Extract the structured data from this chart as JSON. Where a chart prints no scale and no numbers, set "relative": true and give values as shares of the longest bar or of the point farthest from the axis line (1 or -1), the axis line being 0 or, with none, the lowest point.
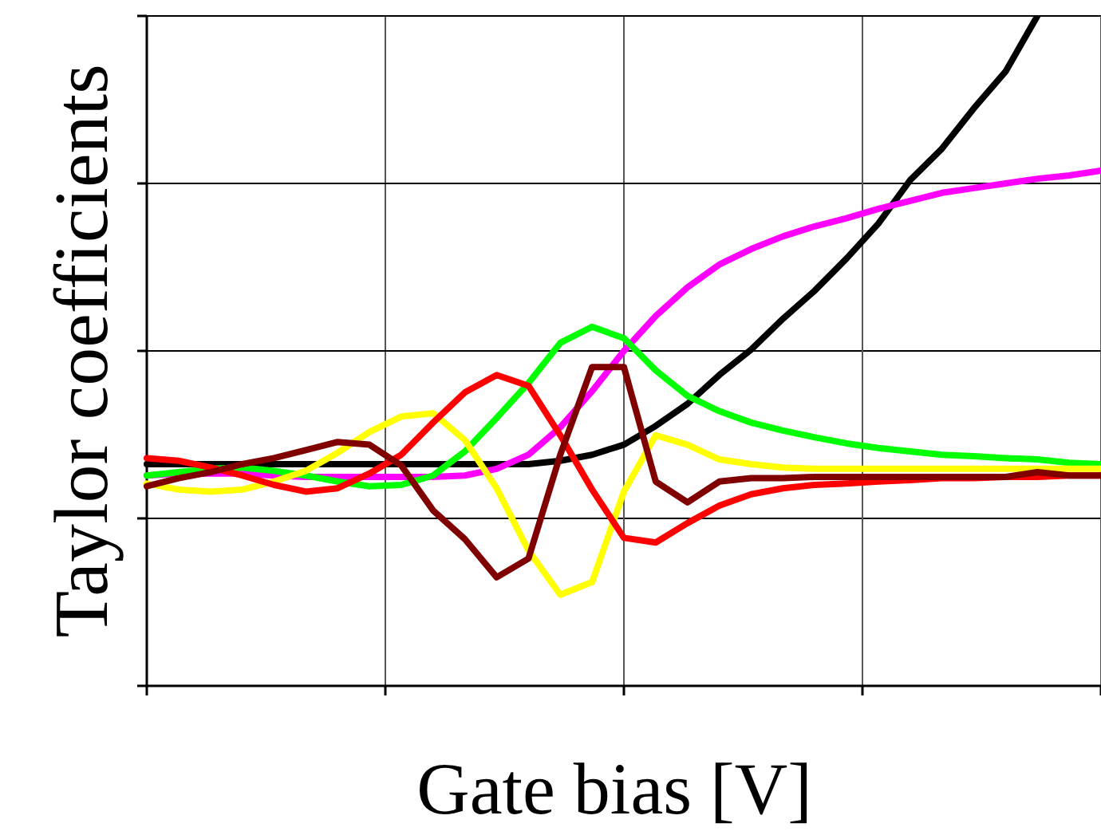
{
  "chart_data": {
    "type": "line",
    "xlabel": "Gate bias [V]",
    "ylabel": "Taylor coefficients",
    "relative": true,
    "grid": true,
    "legend": false,
    "marker": "none",
    "line_style": "solid",
    "categories": [
      null,
      null,
      null,
      null,
      null,
      null,
      null,
      null,
      null,
      null,
      null,
      null,
      null,
      null,
      null,
      null,
      null,
      null,
      null,
      null,
      null,
      null,
      null,
      null,
      null,
      null,
      null,
      null,
      null,
      null,
      null
    ],
    "series": [
      {
        "color": "#000000",
        "values": [
          0.331,
          0.331,
          0.331,
          0.331,
          0.331,
          0.331,
          0.331,
          0.331,
          0.331,
          0.331,
          0.331,
          0.331,
          0.331,
          0.336,
          0.345,
          0.36,
          0.388,
          0.421,
          0.464,
          0.502,
          0.548,
          0.59,
          0.638,
          0.69,
          0.755,
          0.802,
          0.862,
          0.917,
          1,
          null,
          null
        ]
      },
      {
        "color": "#ff00ff",
        "values": [
          0.314,
          0.317,
          0.317,
          0.317,
          0.314,
          0.312,
          0.312,
          0.312,
          0.312,
          0.312,
          0.314,
          0.324,
          0.345,
          0.386,
          0.44,
          0.5,
          0.552,
          0.595,
          0.629,
          0.652,
          0.671,
          0.686,
          0.698,
          0.712,
          0.724,
          0.736,
          0.743,
          0.75,
          0.757,
          0.762,
          0.769
        ]
      },
      {
        "color": "#00ff00",
        "values": [
          0.314,
          0.319,
          0.324,
          0.326,
          0.321,
          0.314,
          0.305,
          0.298,
          0.3,
          0.314,
          0.35,
          0.4,
          0.452,
          0.512,
          0.536,
          0.519,
          0.471,
          0.433,
          0.41,
          0.393,
          0.381,
          0.371,
          0.362,
          0.355,
          0.35,
          0.345,
          0.343,
          0.34,
          0.338,
          0.333,
          0.331
        ]
      },
      {
        "color": "#ffff00",
        "values": [
          0.302,
          0.293,
          0.29,
          0.293,
          0.305,
          0.321,
          0.348,
          0.379,
          0.402,
          0.407,
          0.367,
          0.295,
          0.202,
          0.136,
          0.155,
          0.29,
          0.374,
          0.36,
          0.338,
          0.331,
          0.326,
          0.324,
          0.324,
          0.324,
          0.324,
          0.324,
          0.324,
          0.324,
          0.324,
          0.324,
          0.324
        ]
      },
      {
        "color": "#ff0000",
        "values": [
          0.34,
          0.336,
          0.326,
          0.314,
          0.3,
          0.29,
          0.295,
          0.317,
          0.345,
          0.393,
          0.438,
          0.464,
          0.448,
          0.374,
          0.293,
          0.221,
          0.214,
          0.243,
          0.269,
          0.286,
          0.295,
          0.3,
          0.302,
          0.305,
          0.307,
          0.31,
          0.31,
          0.312,
          0.312,
          0.314,
          0.314
        ]
      },
      {
        "color": "#800000",
        "values": [
          0.298,
          0.31,
          0.319,
          0.331,
          0.34,
          0.352,
          0.364,
          0.36,
          0.329,
          0.262,
          0.219,
          0.162,
          0.19,
          0.345,
          0.476,
          0.476,
          0.305,
          0.274,
          0.305,
          0.31,
          0.31,
          0.312,
          0.312,
          0.312,
          0.312,
          0.312,
          0.312,
          0.312,
          0.319,
          0.314,
          0.314
        ]
      }
    ]
  }
}
